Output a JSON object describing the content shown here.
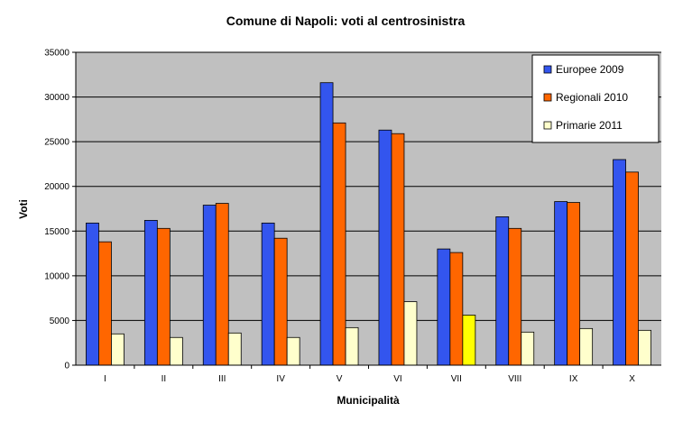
{
  "chart_data": {
    "type": "bar",
    "title": "Comune di Napoli: voti al centrosinistra",
    "xlabel": "Municipalità",
    "ylabel": "Voti",
    "ylim": [
      0,
      35000
    ],
    "yticks": [
      0,
      5000,
      10000,
      15000,
      20000,
      25000,
      30000,
      35000
    ],
    "grid": true,
    "legend_position": "top-right",
    "categories": [
      "I",
      "II",
      "III",
      "IV",
      "V",
      "VI",
      "VII",
      "VIII",
      "IX",
      "X"
    ],
    "series": [
      {
        "name": "Europee 2009",
        "color": "#3355ee",
        "values": [
          15900,
          16200,
          17900,
          15900,
          31600,
          26300,
          13000,
          16600,
          18300,
          23000
        ]
      },
      {
        "name": "Regionali 2010",
        "color": "#ff6600",
        "values": [
          13800,
          15300,
          18100,
          14200,
          27100,
          25900,
          12600,
          15300,
          18200,
          21600
        ]
      },
      {
        "name": "Primarie 2011",
        "color": "#ffffcc",
        "highlight_color": "#ffff00",
        "highlight_category": "VII",
        "values": [
          3500,
          3100,
          3600,
          3100,
          4200,
          7100,
          5600,
          3700,
          4100,
          3900
        ]
      }
    ]
  }
}
